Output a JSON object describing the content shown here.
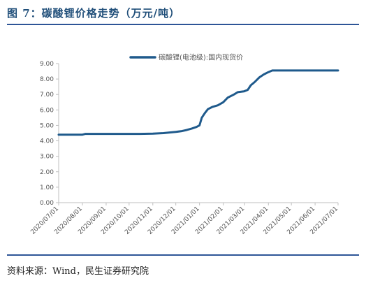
{
  "figure": {
    "title": "图 7：碳酸锂价格走势（万元/吨）",
    "source": "资料来源：Wind，民生证券研究院"
  },
  "chart_data": {
    "type": "line",
    "legend_position": "top",
    "grid": false,
    "ylim": [
      0,
      9
    ],
    "yticks": [
      "0.00",
      "1.00",
      "2.00",
      "3.00",
      "4.00",
      "5.00",
      "6.00",
      "7.00",
      "8.00",
      "9.00"
    ],
    "xticks": [
      "2020/07/01",
      "2020/08/01",
      "2020/09/01",
      "2020/10/01",
      "2020/11/01",
      "2020/12/01",
      "2021/01/01",
      "2021/02/01",
      "2021/03/01",
      "2021/04/01",
      "2021/05/01",
      "2021/06/01",
      "2021/07/01"
    ],
    "xlim": [
      "2020/07/01",
      "2021/07/01"
    ],
    "colors": {
      "series": "#1f5a8c",
      "axis": "#bfbfbf"
    },
    "series": [
      {
        "name": "碳酸锂(电池级):国内现货价",
        "points": [
          [
            "2020/07/01",
            4.4
          ],
          [
            "2020/08/01",
            4.4
          ],
          [
            "2020/08/05",
            4.45
          ],
          [
            "2020/09/01",
            4.45
          ],
          [
            "2020/10/01",
            4.45
          ],
          [
            "2020/10/15",
            4.45
          ],
          [
            "2020/11/01",
            4.47
          ],
          [
            "2020/11/15",
            4.5
          ],
          [
            "2020/11/25",
            4.55
          ],
          [
            "2020/12/01",
            4.58
          ],
          [
            "2020/12/08",
            4.62
          ],
          [
            "2020/12/15",
            4.7
          ],
          [
            "2020/12/22",
            4.8
          ],
          [
            "2020/12/28",
            4.9
          ],
          [
            "2021/01/01",
            5.0
          ],
          [
            "2021/01/04",
            5.5
          ],
          [
            "2021/01/08",
            5.8
          ],
          [
            "2021/01/12",
            6.05
          ],
          [
            "2021/01/18",
            6.2
          ],
          [
            "2021/01/25",
            6.3
          ],
          [
            "2021/02/01",
            6.5
          ],
          [
            "2021/02/07",
            6.8
          ],
          [
            "2021/02/15",
            7.0
          ],
          [
            "2021/02/20",
            7.15
          ],
          [
            "2021/02/28",
            7.2
          ],
          [
            "2021/03/05",
            7.3
          ],
          [
            "2021/03/09",
            7.6
          ],
          [
            "2021/03/14",
            7.8
          ],
          [
            "2021/03/20",
            8.1
          ],
          [
            "2021/03/26",
            8.3
          ],
          [
            "2021/04/01",
            8.45
          ],
          [
            "2021/04/06",
            8.55
          ],
          [
            "2021/05/01",
            8.55
          ],
          [
            "2021/06/01",
            8.55
          ],
          [
            "2021/07/01",
            8.55
          ]
        ]
      }
    ]
  }
}
